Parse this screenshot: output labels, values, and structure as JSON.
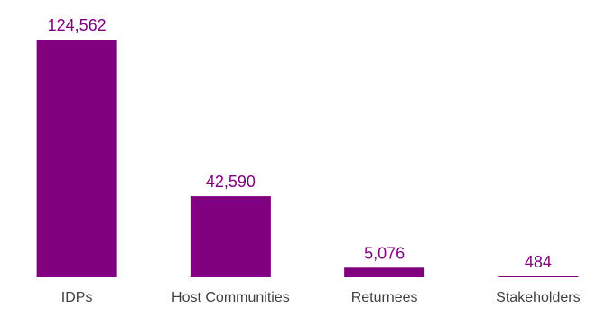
{
  "chart_data": {
    "type": "bar",
    "categories": [
      "IDPs",
      "Host Communities",
      "Returnees",
      "Stakeholders"
    ],
    "values": [
      124562,
      42590,
      5076,
      484
    ],
    "data_labels": [
      "124,562",
      "42,590",
      "5,076",
      "484"
    ],
    "title": "",
    "xlabel": "",
    "ylabel": "",
    "ylim": [
      0,
      124562
    ],
    "grid": false,
    "legend": "none",
    "bar_color": "#800080",
    "label_color": "#800080",
    "category_label_color": "#3f3f3f"
  }
}
